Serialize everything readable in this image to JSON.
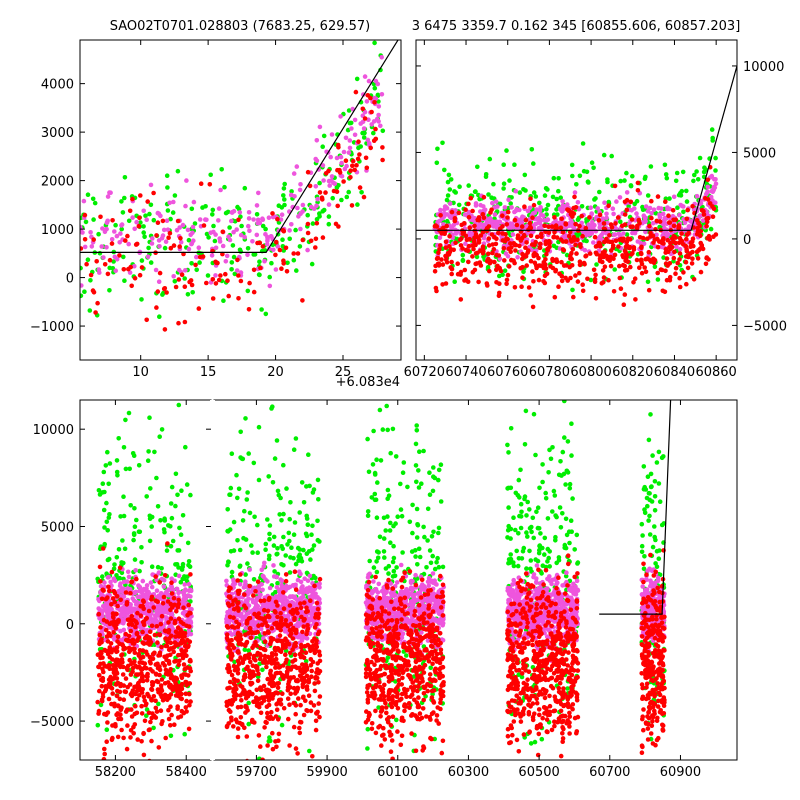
{
  "colors": {
    "green": "#00ee00",
    "magenta": "#ee55dd",
    "red": "#ff0000",
    "line": "#000000"
  },
  "chart_data": [
    {
      "id": "topleft",
      "type": "scatter",
      "title": "SAO02T0701.028803 (7683.25, 629.57)",
      "xlim": [
        5.5,
        29.3
      ],
      "ylim": [
        -1700,
        4900
      ],
      "xticks": [
        10,
        15,
        20,
        25
      ],
      "xtick_labels": [
        "10",
        "15",
        "20",
        "25"
      ],
      "yticks": [
        -1000,
        0,
        1000,
        2000,
        3000,
        4000
      ],
      "ytick_labels": [
        "−1000",
        "0",
        "1000",
        "2000",
        "3000",
        "4000"
      ],
      "x_offset_label": "+6.083e4",
      "model_line": [
        [
          5.5,
          520
        ],
        [
          19.3,
          520
        ],
        [
          29.3,
          5000
        ]
      ],
      "series": [
        {
          "name": "green",
          "color": "green",
          "x_range": [
            5.5,
            28
          ],
          "y_center": 700,
          "y_spread": 1300,
          "n": 260,
          "late_boost": true
        },
        {
          "name": "magenta",
          "color": "magenta",
          "x_range": [
            5.5,
            28
          ],
          "y_center": 800,
          "y_spread": 900,
          "n": 260,
          "late_boost": true
        },
        {
          "name": "red",
          "color": "red",
          "x_range": [
            5.5,
            28
          ],
          "y_center": 300,
          "y_spread": 1300,
          "n": 170,
          "late_boost": true
        }
      ]
    },
    {
      "id": "topright",
      "type": "scatter",
      "title": "3 6475 3359.7 0.162 345 [60855.606, 60857.203]",
      "xlim": [
        60716,
        60870
      ],
      "ylim": [
        -7000,
        11500
      ],
      "xticks": [
        60720,
        60740,
        60760,
        60780,
        60800,
        60820,
        60840,
        60860
      ],
      "xtick_labels": [
        "60720",
        "60740",
        "60760",
        "60780",
        "60800",
        "60820",
        "60840",
        "60860"
      ],
      "yticks": [
        -5000,
        0,
        5000,
        10000
      ],
      "ytick_labels": [
        "−5000",
        "0",
        "5000",
        "10000"
      ],
      "model_line": [
        [
          60716,
          500
        ],
        [
          60848,
          500
        ],
        [
          60870,
          10000
        ]
      ],
      "series": [
        {
          "name": "green",
          "color": "green",
          "x_range": [
            60725,
            60860
          ],
          "y_center": 1200,
          "y_spread": 3500,
          "n": 420
        },
        {
          "name": "magenta",
          "color": "magenta",
          "x_range": [
            60725,
            60860
          ],
          "y_center": 700,
          "y_spread": 1400,
          "n": 650
        },
        {
          "name": "red",
          "color": "red",
          "x_range": [
            60725,
            60860
          ],
          "y_center": -500,
          "y_spread": 2600,
          "n": 650
        }
      ]
    },
    {
      "id": "bottom",
      "type": "scatter",
      "title": "",
      "ylim": [
        -7000,
        11500
      ],
      "yticks": [
        -5000,
        0,
        5000,
        10000
      ],
      "ytick_labels": [
        "−5000",
        "0",
        "5000",
        "10000"
      ],
      "segments": [
        {
          "xlim": [
            58100,
            58470
          ],
          "xticks": [
            58200,
            58400
          ],
          "xtick_labels": [
            "58200",
            "58400"
          ],
          "data_range": [
            58150,
            58415
          ]
        },
        {
          "xlim": [
            59580,
            61060
          ],
          "xticks": [
            59700,
            59900,
            60100,
            60300,
            60500,
            60700,
            60900
          ],
          "xtick_labels": [
            "59700",
            "59900",
            "60100",
            "60300",
            "60500",
            "60700",
            "60900"
          ],
          "clusters": [
            [
              59615,
              59880
            ],
            [
              60010,
              60230
            ],
            [
              60410,
              60610
            ],
            [
              60790,
              60855
            ]
          ]
        }
      ],
      "model_line": [
        [
          60670,
          500
        ],
        [
          60848,
          500
        ],
        [
          60872,
          11500
        ]
      ],
      "series": [
        {
          "name": "green",
          "color": "green",
          "y_center": 2500,
          "y_spread": 7500
        },
        {
          "name": "magenta",
          "color": "magenta",
          "y_center": 700,
          "y_spread": 1700
        },
        {
          "name": "red",
          "color": "red",
          "y_center": -2000,
          "y_spread": 4000
        }
      ]
    }
  ]
}
